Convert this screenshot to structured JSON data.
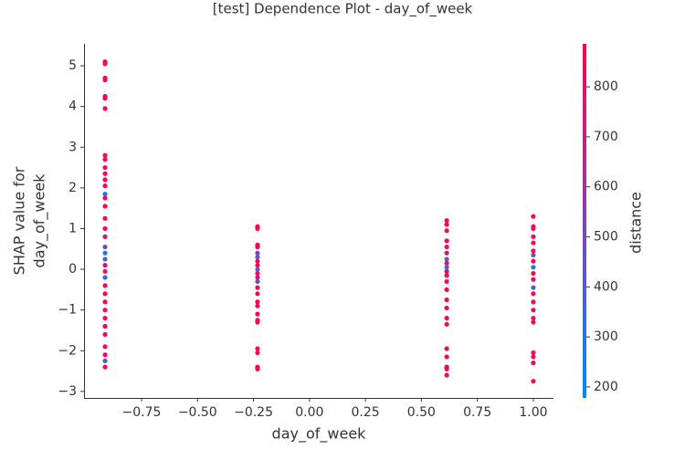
{
  "chart_data": {
    "type": "scatter",
    "title": "[test] Dependence Plot - day_of_week",
    "xlabel": "day_of_week",
    "ylabel": [
      "SHAP value for",
      "day_of_week"
    ],
    "colorbar_label": "distance",
    "colormap": [
      "#008afb",
      "#ff0052"
    ],
    "xlim": [
      -1.007,
      1.09
    ],
    "ylim": [
      -3.16,
      5.54
    ],
    "clim": [
      178,
      886
    ],
    "xticks": [
      {
        "value": -0.75,
        "label": "−0.75"
      },
      {
        "value": -0.5,
        "label": "−0.50"
      },
      {
        "value": -0.25,
        "label": "−0.25"
      },
      {
        "value": 0,
        "label": "0.00"
      },
      {
        "value": 0.25,
        "label": "0.25"
      },
      {
        "value": 0.5,
        "label": "0.50"
      },
      {
        "value": 0.75,
        "label": "0.75"
      },
      {
        "value": 1,
        "label": "1.00"
      }
    ],
    "yticks": [
      {
        "value": -3,
        "label": "−3"
      },
      {
        "value": -2,
        "label": "−2"
      },
      {
        "value": -1,
        "label": "−1"
      },
      0,
      1,
      2,
      3,
      4,
      5
    ],
    "cticks": [
      200,
      300,
      400,
      500,
      600,
      700,
      800
    ],
    "x": [
      -0.913,
      -0.913,
      -0.913,
      -0.913,
      -0.913,
      -0.913,
      -0.913,
      -0.913,
      -0.913,
      -0.913,
      -0.913,
      -0.913,
      -0.913,
      -0.913,
      -0.913,
      -0.913,
      -0.913,
      -0.913,
      -0.913,
      -0.913,
      -0.913,
      -0.913,
      -0.913,
      -0.913,
      -0.913,
      -0.913,
      -0.913,
      -0.913,
      -0.913,
      -0.913,
      -0.913,
      -0.913,
      -0.913,
      -0.913,
      -0.913,
      -0.913,
      -0.232,
      -0.232,
      -0.232,
      -0.232,
      -0.232,
      -0.232,
      -0.232,
      -0.232,
      -0.232,
      -0.232,
      -0.232,
      -0.232,
      -0.232,
      -0.232,
      -0.232,
      -0.232,
      -0.232,
      -0.232,
      -0.232,
      -0.232,
      -0.232,
      -0.232,
      -0.232,
      0.613,
      0.613,
      0.613,
      0.613,
      0.613,
      0.613,
      0.613,
      0.613,
      0.613,
      0.613,
      0.613,
      0.613,
      0.613,
      0.613,
      0.613,
      0.613,
      0.613,
      0.613,
      0.613,
      0.613,
      0.613,
      0.613,
      1.0,
      1.0,
      1.0,
      1.0,
      1.0,
      1.0,
      1.0,
      1.0,
      1.0,
      1.0,
      1.0,
      1.0,
      1.0,
      1.0,
      1.0,
      1.0,
      1.0,
      1.0,
      1.0,
      1.0,
      1.0
    ],
    "values": [
      5.1,
      5.05,
      4.7,
      4.65,
      4.25,
      4.2,
      3.95,
      2.8,
      2.7,
      2.5,
      2.35,
      2.2,
      2.05,
      1.85,
      1.75,
      1.55,
      1.25,
      1.0,
      0.8,
      0.55,
      0.4,
      0.25,
      0.1,
      -0.05,
      -0.2,
      -0.4,
      -0.6,
      -0.8,
      -1.0,
      -1.2,
      -1.4,
      -1.6,
      -1.9,
      -2.1,
      -2.25,
      -2.4,
      1.05,
      1.0,
      0.6,
      0.55,
      0.4,
      0.3,
      0.2,
      0.1,
      0.0,
      -0.1,
      -0.2,
      -0.3,
      -0.45,
      -0.6,
      -0.8,
      -0.9,
      -1.1,
      -1.25,
      -1.3,
      -1.95,
      -2.05,
      -2.4,
      -2.45,
      1.2,
      1.1,
      0.95,
      0.7,
      0.55,
      0.4,
      0.25,
      0.15,
      0.05,
      -0.05,
      -0.15,
      -0.3,
      -0.5,
      -0.75,
      -0.95,
      -1.2,
      -1.35,
      -1.95,
      -2.15,
      -2.4,
      -2.45,
      -2.6,
      1.3,
      1.05,
      1.0,
      0.8,
      0.65,
      0.45,
      0.35,
      0.2,
      0.05,
      -0.1,
      -0.25,
      -0.45,
      -0.6,
      -0.8,
      -1.0,
      -1.2,
      -1.3,
      -2.05,
      -2.15,
      -2.3,
      -2.75
    ],
    "color_values": [
      860,
      850,
      870,
      840,
      860,
      850,
      870,
      840,
      860,
      830,
      850,
      870,
      840,
      300,
      820,
      850,
      830,
      860,
      700,
      500,
      280,
      350,
      840,
      820,
      300,
      860,
      850,
      840,
      870,
      830,
      860,
      850,
      840,
      860,
      450,
      850,
      860,
      850,
      840,
      870,
      500,
      420,
      830,
      860,
      400,
      850,
      820,
      480,
      860,
      840,
      850,
      830,
      860,
      870,
      840,
      860,
      850,
      870,
      840,
      860,
      850,
      840,
      870,
      830,
      700,
      400,
      860,
      320,
      850,
      840,
      860,
      870,
      830,
      850,
      860,
      840,
      860,
      850,
      870,
      840,
      860,
      860,
      850,
      840,
      870,
      830,
      860,
      400,
      850,
      320,
      840,
      860,
      380,
      870,
      830,
      850,
      860,
      840,
      860,
      850,
      870,
      840
    ]
  }
}
